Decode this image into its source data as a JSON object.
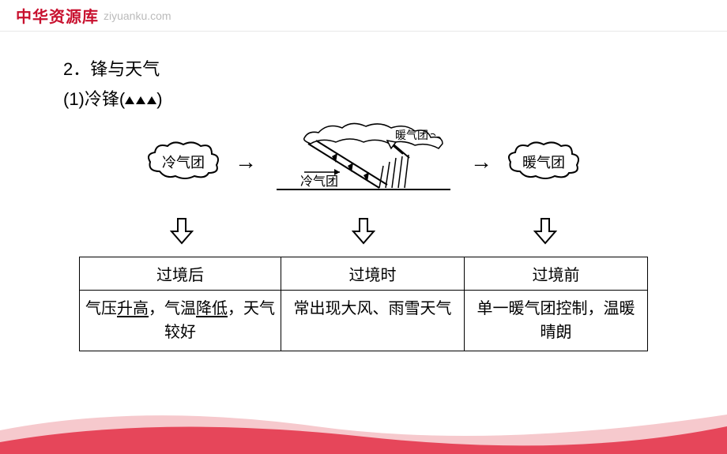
{
  "header": {
    "logo": "中华资源库",
    "url": "ziyuanku.com"
  },
  "content": {
    "section_number": "2．",
    "section_title": "锋与天气",
    "subsection_number": "(1)",
    "subsection_title": "冷锋",
    "cold_air": "冷气团",
    "warm_air": "暖气团",
    "center_cold": "冷气团",
    "center_warm": "暖气团"
  },
  "table": {
    "cols": [
      {
        "header": "过境后",
        "body_parts": [
          {
            "t": "气压",
            "u": false
          },
          {
            "t": "升高",
            "u": true
          },
          {
            "t": "，气温",
            "u": false
          },
          {
            "t": "降低",
            "u": true
          },
          {
            "t": "，天气较好",
            "u": false
          }
        ]
      },
      {
        "header": "过境时",
        "body_parts": [
          {
            "t": "常出现大风、雨雪天气",
            "u": false
          }
        ]
      },
      {
        "header": "过境前",
        "body_parts": [
          {
            "t": "单一暖气团控制，温暖晴朗",
            "u": false
          }
        ]
      }
    ]
  },
  "style": {
    "logo_color": "#c8102e",
    "url_color": "#bbbbbb",
    "border_color": "#000000",
    "wave_back": "#f6c9cd",
    "wave_front": "#e6465a",
    "text_color": "#000000",
    "font_size_title": 22,
    "font_size_table": 20
  }
}
